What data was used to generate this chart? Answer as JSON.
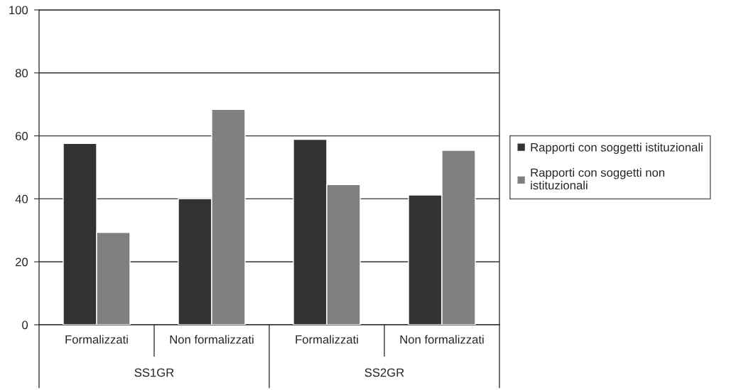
{
  "chart_data": {
    "type": "bar",
    "categories": [
      "Formalizzati",
      "Non formalizzati",
      "Formalizzati",
      "Non formalizzati"
    ],
    "series": [
      {
        "name": "Rapporti con soggetti istituzionali",
        "color": "#333333",
        "values": [
          57.6,
          40,
          58.9,
          41.2
        ]
      },
      {
        "name": "Rapporti con soggetti non istituzionali",
        "color": "#808080",
        "values": [
          29.3,
          68.4,
          44.5,
          55.4
        ]
      }
    ],
    "annotations": [
      "SS1GR",
      "SS2GR"
    ],
    "ylim": [
      0,
      100
    ],
    "yticks": [
      0,
      20,
      40,
      60,
      80,
      100
    ],
    "grid": "y",
    "legend": "right"
  }
}
